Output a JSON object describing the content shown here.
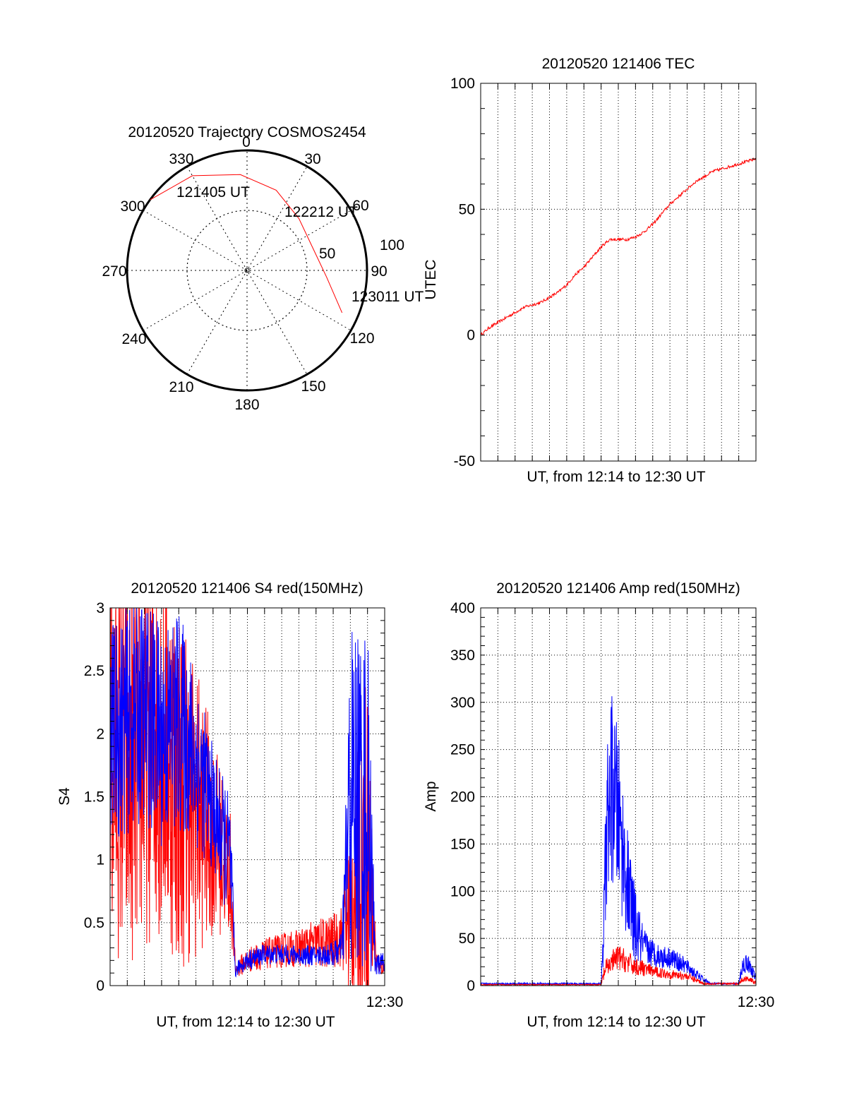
{
  "chart_data": [
    {
      "type": "polar",
      "title": "20120520 Trajectory COSMOS2454",
      "azimuth_ticks": [
        "0",
        "30",
        "60",
        "90",
        "120",
        "150",
        "180",
        "210",
        "240",
        "270",
        "300",
        "330"
      ],
      "elevation_ticks": [
        "50",
        "100"
      ],
      "trajectory_labels": [
        {
          "text": "121405 UT",
          "azimuth": 306,
          "elevation": 0
        },
        {
          "text": "122212 UT",
          "azimuth": 45,
          "elevation": 35
        },
        {
          "text": "123011 UT",
          "azimuth": 114,
          "elevation": 12
        }
      ],
      "trajectory": [
        {
          "azimuth": 306,
          "elevation": 0
        },
        {
          "azimuth": 330,
          "elevation": 8
        },
        {
          "azimuth": 356,
          "elevation": 18
        },
        {
          "azimuth": 20,
          "elevation": 26
        },
        {
          "azimuth": 45,
          "elevation": 35
        },
        {
          "azimuth": 70,
          "elevation": 38
        },
        {
          "azimuth": 95,
          "elevation": 30
        },
        {
          "azimuth": 114,
          "elevation": 12
        }
      ],
      "trajectory_color": "#ff0000"
    },
    {
      "type": "line",
      "title": "20120520 121406 TEC",
      "xlabel": "UT, from 12:14 to 12:30 UT",
      "ylabel": "UTEC",
      "ylim": [
        -50,
        100
      ],
      "yticks": [
        "100",
        "50",
        "0",
        "-50"
      ],
      "xlim": [
        0,
        16
      ],
      "grid": true,
      "series": [
        {
          "color": "#ff0000",
          "noise": 0.6,
          "x": [
            0,
            0.5,
            1.0,
            1.5,
            2.0,
            2.5,
            3.0,
            3.5,
            4.0,
            4.5,
            5.0,
            5.5,
            6.0,
            6.5,
            7.0,
            7.5,
            8.0,
            8.5,
            9.0,
            9.5,
            10.0,
            10.5,
            11.0,
            11.5,
            12.0,
            12.5,
            13.0,
            13.5,
            14.0,
            14.5,
            15.0,
            15.5,
            16.0
          ],
          "y": [
            0,
            3,
            5,
            7,
            9,
            11,
            12,
            13,
            15,
            17,
            20,
            24,
            27,
            31,
            35,
            38,
            38,
            38,
            39,
            41,
            44,
            48,
            52,
            55,
            58,
            61,
            63,
            65,
            66,
            67,
            68,
            69,
            70
          ]
        }
      ]
    },
    {
      "type": "line",
      "title": "20120520 121406 S4 red(150MHz)",
      "xlabel": "UT, from 12:14 to 12:30 UT",
      "ylabel": "S4",
      "ylim": [
        0,
        3
      ],
      "yticks": [
        "3",
        "2.5",
        "2",
        "1.5",
        "1",
        "0.5",
        "0"
      ],
      "xtick_end_label": "12:30",
      "xlim": [
        0,
        16
      ],
      "grid": true,
      "series": [
        {
          "color": "#ff0000",
          "x": [
            0,
            1,
            2,
            3,
            4,
            5,
            6,
            7,
            7.3,
            7.5,
            8,
            9,
            10,
            11,
            12,
            13,
            13.5,
            14,
            15,
            15.5,
            16
          ],
          "y": [
            1.9,
            1.7,
            1.9,
            2.0,
            1.6,
            1.4,
            1.2,
            0.9,
            0.12,
            0.15,
            0.2,
            0.25,
            0.28,
            0.3,
            0.33,
            0.35,
            0.4,
            0.6,
            1.2,
            0.2,
            0.13
          ],
          "noise": [
            1.6,
            1.6,
            1.6,
            1.6,
            1.5,
            1.2,
            0.8,
            0.5,
            0.05,
            0.08,
            0.1,
            0.12,
            0.14,
            0.15,
            0.2,
            0.22,
            0.25,
            0.8,
            1.4,
            0.1,
            0.06
          ]
        },
        {
          "color": "#0000ff",
          "x": [
            0,
            1,
            2,
            3,
            4,
            5,
            6,
            7,
            7.3,
            7.5,
            8,
            9,
            10,
            11,
            12,
            13,
            13.5,
            14,
            15,
            15.5,
            16
          ],
          "y": [
            2.0,
            2.1,
            2.2,
            2.0,
            2.1,
            1.8,
            1.4,
            1.0,
            0.1,
            0.15,
            0.2,
            0.25,
            0.25,
            0.24,
            0.24,
            0.25,
            0.3,
            1.5,
            1.5,
            0.15,
            0.2
          ],
          "noise": [
            0.9,
            0.9,
            0.9,
            0.9,
            0.9,
            0.7,
            0.5,
            0.5,
            0.04,
            0.06,
            0.08,
            0.08,
            0.08,
            0.08,
            0.08,
            0.1,
            0.12,
            1.4,
            1.4,
            0.08,
            0.1
          ]
        }
      ]
    },
    {
      "type": "line",
      "title": "20120520 121406 Amp red(150MHz)",
      "xlabel": "UT, from 12:14 to 12:30 UT",
      "ylabel": "Amp",
      "ylim": [
        0,
        400
      ],
      "yticks": [
        "400",
        "350",
        "300",
        "250",
        "200",
        "150",
        "100",
        "50",
        "0"
      ],
      "xtick_end_label": "12:30",
      "xlim": [
        0,
        16
      ],
      "grid": true,
      "series": [
        {
          "color": "#0000ff",
          "x": [
            0,
            6.9,
            7.0,
            7.1,
            7.3,
            7.6,
            8.0,
            8.5,
            9.0,
            9.5,
            10.0,
            10.5,
            11.0,
            11.5,
            12.0,
            12.5,
            13.0,
            13.4,
            15.0,
            15.2,
            15.5,
            16.0
          ],
          "y": [
            2,
            2,
            2,
            30,
            160,
            210,
            180,
            110,
            60,
            40,
            35,
            30,
            30,
            25,
            20,
            12,
            6,
            2,
            2,
            20,
            25,
            8
          ],
          "noise": [
            1,
            1,
            1,
            20,
            80,
            100,
            90,
            60,
            40,
            20,
            15,
            12,
            12,
            10,
            8,
            5,
            3,
            1,
            1,
            10,
            10,
            5
          ]
        },
        {
          "color": "#ff0000",
          "x": [
            0,
            6.9,
            7.0,
            7.2,
            7.6,
            8.0,
            8.5,
            9.0,
            9.5,
            10.0,
            11.0,
            12.0,
            12.5,
            13.0,
            15.0,
            15.2,
            15.5,
            16.0
          ],
          "y": [
            1,
            1,
            1,
            15,
            25,
            30,
            25,
            20,
            18,
            15,
            12,
            10,
            6,
            2,
            2,
            6,
            8,
            3
          ],
          "noise": [
            0.5,
            0.5,
            0.5,
            10,
            12,
            14,
            12,
            10,
            8,
            6,
            5,
            4,
            3,
            1,
            1,
            3,
            3,
            2
          ]
        }
      ]
    }
  ]
}
